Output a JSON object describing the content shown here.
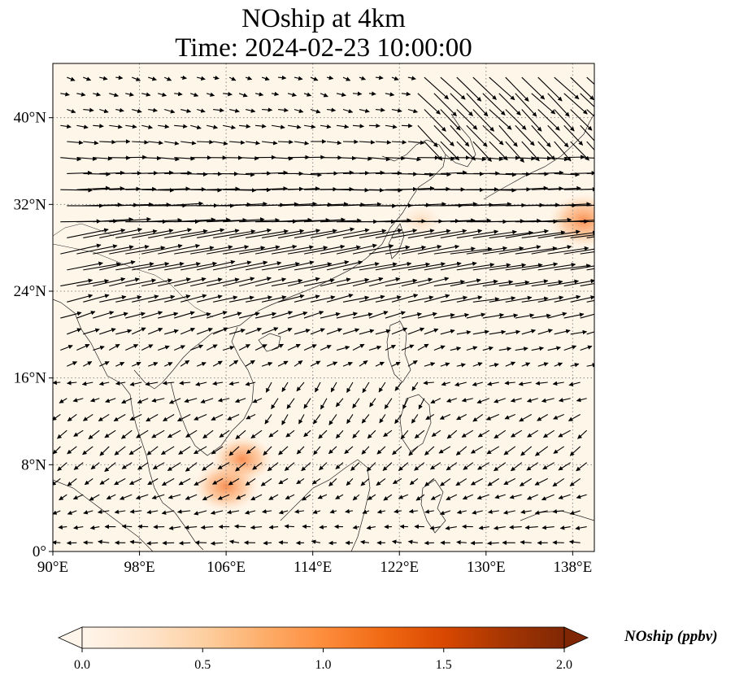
{
  "title": {
    "line1": "NOship at 4km",
    "line2": "Time: 2024-02-23 10:00:00"
  },
  "map": {
    "extent": {
      "lon_min": 90,
      "lon_max": 140,
      "lat_min": 0,
      "lat_max": 45
    },
    "lon_ticks": [
      {
        "value": 90,
        "label": "90°E"
      },
      {
        "value": 98,
        "label": "98°E"
      },
      {
        "value": 106,
        "label": "106°E"
      },
      {
        "value": 114,
        "label": "114°E"
      },
      {
        "value": 122,
        "label": "122°E"
      },
      {
        "value": 130,
        "label": "130°E"
      },
      {
        "value": 138,
        "label": "138°E"
      }
    ],
    "lat_ticks": [
      {
        "value": 0,
        "label": "0°"
      },
      {
        "value": 8,
        "label": "8°N"
      },
      {
        "value": 16,
        "label": "16°N"
      },
      {
        "value": 24,
        "label": "24°N"
      },
      {
        "value": 32,
        "label": "32°N"
      },
      {
        "value": 40,
        "label": "40°N"
      }
    ],
    "gridlines": true,
    "background_color": "#fff6ea",
    "hotspots": [
      {
        "name": "gulf-of-thailand-plume",
        "lon": 107.5,
        "lat": 8.5,
        "ppbv": 0.7
      },
      {
        "name": "cambodia-coast-spot",
        "lon": 106.0,
        "lat": 6.0,
        "ppbv": 0.8
      },
      {
        "name": "japan-south-coast-spot",
        "lon": 139.0,
        "lat": 30.5,
        "ppbv": 0.9
      },
      {
        "name": "east-china-sea-plume",
        "lon": 124.0,
        "lat": 30.5,
        "ppbv": 0.25
      }
    ]
  },
  "colorbar": {
    "label": "NOship (ppbv)",
    "min": 0.0,
    "max": 2.0,
    "extend": "both",
    "colormap": [
      "#fff5eb",
      "#fee6ce",
      "#fdd0a2",
      "#fdae6b",
      "#fd8d3c",
      "#f16913",
      "#d94801",
      "#a63603",
      "#7f2704"
    ],
    "ticks": [
      {
        "value": 0.0,
        "label": "0.0"
      },
      {
        "value": 0.5,
        "label": "0.5"
      },
      {
        "value": 1.0,
        "label": "1.0"
      },
      {
        "value": 1.5,
        "label": "1.5"
      },
      {
        "value": 2.0,
        "label": "2.0"
      }
    ]
  }
}
